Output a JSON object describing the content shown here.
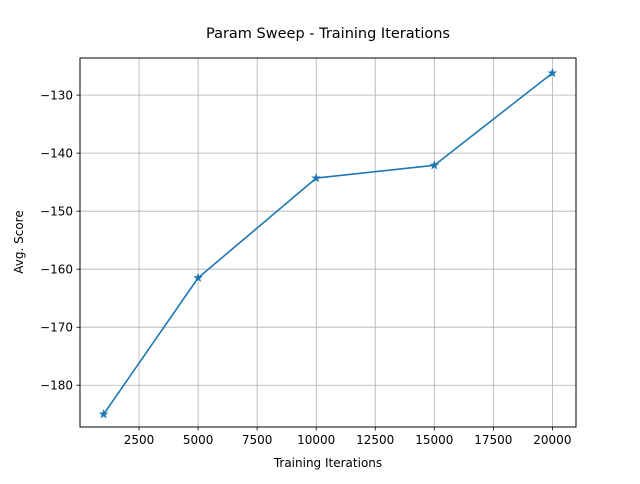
{
  "chart_data": {
    "type": "line",
    "title": "Param Sweep - Training Iterations",
    "xlabel": "Training Iterations",
    "ylabel": "Avg. Score",
    "xlim": [
      0,
      21000
    ],
    "ylim": [
      -187.2,
      -123.6
    ],
    "grid": true,
    "x_ticks": [
      2500,
      5000,
      7500,
      10000,
      12500,
      15000,
      17500,
      20000
    ],
    "y_ticks": [
      -180,
      -170,
      -160,
      -150,
      -140,
      -130
    ],
    "series": [
      {
        "marker": "star",
        "color": "#1f77b4",
        "x": [
          1000,
          5000,
          10000,
          15000,
          20000
        ],
        "y": [
          -185.0,
          -161.5,
          -144.3,
          -142.1,
          -126.2
        ]
      }
    ]
  }
}
